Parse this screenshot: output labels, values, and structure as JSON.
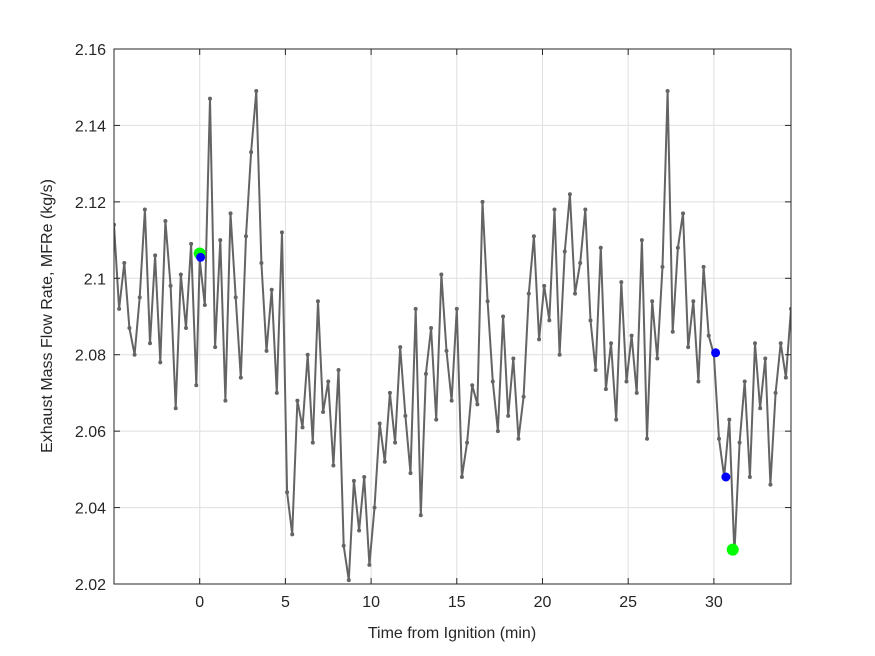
{
  "chart_data": {
    "type": "line",
    "xlabel": "Time from Ignition (min)",
    "ylabel": "Exhaust Mass Flow Rate, MFRe (kg/s)",
    "xlim": [
      -5,
      34.5
    ],
    "ylim": [
      2.02,
      2.16
    ],
    "xticks": [
      0,
      5,
      10,
      15,
      20,
      25,
      30
    ],
    "yticks": [
      2.02,
      2.04,
      2.06,
      2.08,
      2.1,
      2.12,
      2.14,
      2.16
    ],
    "ytick_labels": [
      "2.02",
      "2.04",
      "2.06",
      "2.08",
      "2.1",
      "2.12",
      "2.14",
      "2.16"
    ],
    "grid": true,
    "legend": "none",
    "colors": {
      "line": "#646464",
      "marker": "#646464",
      "green": "#00ff00",
      "blue": "#0000ff",
      "axis": "#262626",
      "grid": "#dfdfdf"
    },
    "series": [
      {
        "style": "line-with-dots",
        "x": [
          -5.0,
          -4.7,
          -4.4,
          -4.1,
          -3.8,
          -3.5,
          -3.2,
          -2.9,
          -2.6,
          -2.3,
          -2.0,
          -1.7,
          -1.4,
          -1.1,
          -0.8,
          -0.5,
          -0.2,
          0.0,
          0.3,
          0.6,
          0.9,
          1.2,
          1.5,
          1.8,
          2.1,
          2.4,
          2.7,
          3.0,
          3.3,
          3.6,
          3.9,
          4.2,
          4.5,
          4.8,
          5.1,
          5.4,
          5.7,
          6.0,
          6.3,
          6.6,
          6.9,
          7.2,
          7.5,
          7.8,
          8.1,
          8.4,
          8.7,
          9.0,
          9.3,
          9.6,
          9.9,
          10.2,
          10.5,
          10.8,
          11.1,
          11.4,
          11.7,
          12.0,
          12.3,
          12.6,
          12.9,
          13.2,
          13.5,
          13.8,
          14.1,
          14.4,
          14.7,
          15.0,
          15.3,
          15.6,
          15.9,
          16.2,
          16.5,
          16.8,
          17.1,
          17.4,
          17.7,
          18.0,
          18.3,
          18.6,
          18.9,
          19.2,
          19.5,
          19.8,
          20.1,
          20.4,
          20.7,
          21.0,
          21.3,
          21.6,
          21.9,
          22.2,
          22.5,
          22.8,
          23.1,
          23.4,
          23.7,
          24.0,
          24.3,
          24.6,
          24.9,
          25.2,
          25.5,
          25.8,
          26.1,
          26.4,
          26.7,
          27.0,
          27.3,
          27.6,
          27.9,
          28.2,
          28.5,
          28.8,
          29.1,
          29.4,
          29.7,
          30.0,
          30.3,
          30.6,
          30.9,
          31.2,
          31.5,
          31.8,
          32.1,
          32.4,
          32.7,
          33.0,
          33.3,
          33.6,
          33.9,
          34.2,
          34.5
        ],
        "y": [
          2.114,
          2.092,
          2.104,
          2.087,
          2.08,
          2.095,
          2.118,
          2.083,
          2.106,
          2.078,
          2.115,
          2.098,
          2.066,
          2.101,
          2.087,
          2.109,
          2.072,
          2.105,
          2.093,
          2.147,
          2.082,
          2.11,
          2.068,
          2.117,
          2.095,
          2.074,
          2.111,
          2.133,
          2.149,
          2.104,
          2.081,
          2.097,
          2.07,
          2.112,
          2.044,
          2.033,
          2.068,
          2.061,
          2.08,
          2.057,
          2.094,
          2.065,
          2.073,
          2.051,
          2.076,
          2.03,
          2.021,
          2.047,
          2.034,
          2.048,
          2.025,
          2.04,
          2.062,
          2.052,
          2.07,
          2.057,
          2.082,
          2.064,
          2.049,
          2.092,
          2.038,
          2.075,
          2.087,
          2.063,
          2.101,
          2.081,
          2.068,
          2.092,
          2.048,
          2.057,
          2.072,
          2.067,
          2.12,
          2.094,
          2.073,
          2.06,
          2.09,
          2.064,
          2.079,
          2.058,
          2.069,
          2.096,
          2.111,
          2.084,
          2.098,
          2.089,
          2.118,
          2.08,
          2.107,
          2.122,
          2.096,
          2.104,
          2.118,
          2.089,
          2.076,
          2.108,
          2.071,
          2.083,
          2.063,
          2.099,
          2.073,
          2.085,
          2.07,
          2.11,
          2.058,
          2.094,
          2.079,
          2.103,
          2.149,
          2.086,
          2.108,
          2.117,
          2.082,
          2.094,
          2.073,
          2.103,
          2.085,
          2.08,
          2.058,
          2.048,
          2.063,
          2.028,
          2.057,
          2.073,
          2.048,
          2.083,
          2.066,
          2.079,
          2.046,
          2.07,
          2.083,
          2.074,
          2.092
        ]
      },
      {
        "style": "marker",
        "color": "green",
        "size": "large",
        "x": [
          0.0,
          31.1
        ],
        "y": [
          2.1065,
          2.029
        ]
      },
      {
        "style": "marker",
        "color": "blue",
        "size": "small",
        "x": [
          0.05,
          30.1,
          30.7
        ],
        "y": [
          2.1055,
          2.0805,
          2.048
        ]
      }
    ]
  }
}
